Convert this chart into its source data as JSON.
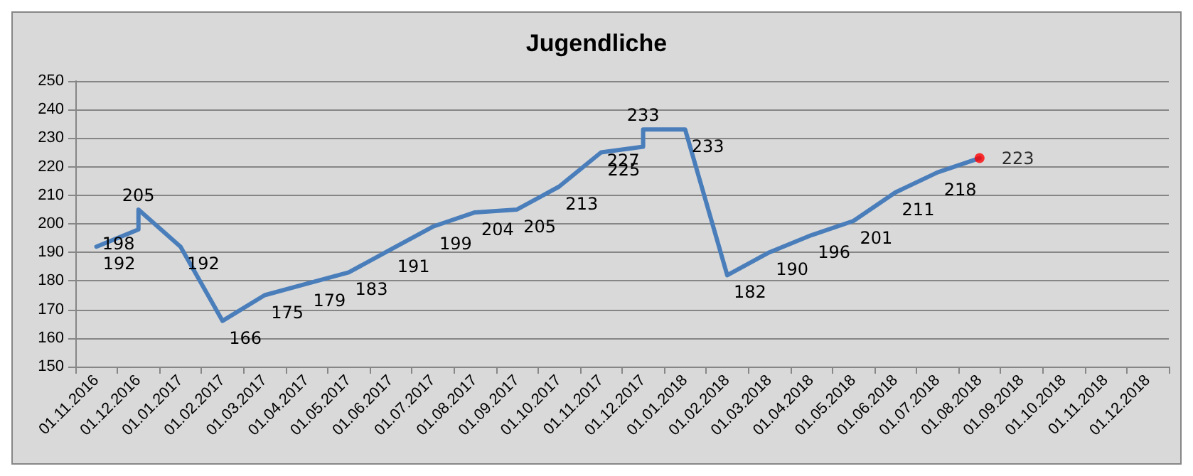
{
  "chart_data": {
    "type": "line",
    "title": "Jugendliche",
    "categories": [
      "01.11.2016",
      "01.12.2016",
      "01.01.2017",
      "01.02.2017",
      "01.03.2017",
      "01.04.2017",
      "01.05.2017",
      "01.06.2017",
      "01.07.2017",
      "01.08.2017",
      "01.09.2017",
      "01.10.2017",
      "01.11.2017",
      "01.12.2017",
      "01.01.2018",
      "01.02.2018",
      "01.03.2018",
      "01.04.2018",
      "01.05.2018",
      "01.06.2018",
      "01.07.2018",
      "01.08.2018",
      "01.09.2018",
      "01.10.2018",
      "01.11.2018",
      "01.12.2018"
    ],
    "series": [
      {
        "color": "#4a7ebb",
        "marker": "none",
        "x": [
          "01.11.2016",
          "01.12.2016",
          "01.12.2016",
          "01.01.2017",
          "01.02.2017",
          "01.03.2017",
          "01.04.2017",
          "01.05.2017",
          "01.06.2017",
          "01.07.2017",
          "01.08.2017",
          "01.09.2017",
          "01.10.2017",
          "01.11.2017",
          "01.12.2017",
          "01.12.2017",
          "01.01.2018",
          "01.02.2018",
          "01.03.2018",
          "01.04.2018",
          "01.05.2018",
          "01.06.2018",
          "01.07.2018",
          "01.08.2018"
        ],
        "values": [
          192,
          198,
          205,
          192,
          166,
          175,
          179,
          183,
          191,
          199,
          204,
          205,
          213,
          225,
          227,
          233,
          233,
          182,
          190,
          196,
          201,
          211,
          218,
          223
        ],
        "value_labels": [
          "192",
          "198",
          "205",
          "192",
          "166",
          "175",
          "179",
          "183",
          "191",
          "199",
          "204",
          "205",
          "213",
          "225",
          "227",
          "233",
          "233",
          "182",
          "190",
          "196",
          "201",
          "211",
          "218",
          null
        ]
      },
      {
        "type": "scatter",
        "color": "#ff0000",
        "marker": "circle",
        "x": [
          "01.08.2018"
        ],
        "values": [
          223
        ],
        "value_labels": [
          "223"
        ]
      }
    ],
    "ylim": [
      150,
      250
    ],
    "yticks": [
      150,
      160,
      170,
      180,
      190,
      200,
      210,
      220,
      230,
      240,
      250
    ],
    "grid": "y",
    "line_style": "solid"
  }
}
